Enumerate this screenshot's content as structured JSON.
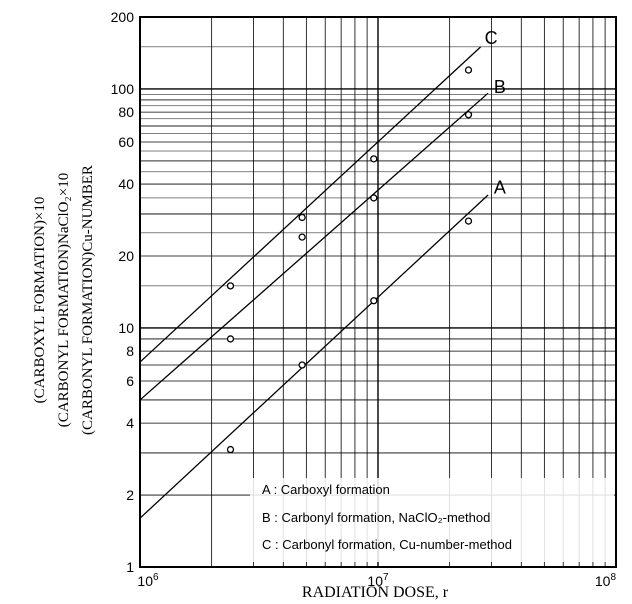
{
  "chart_data": {
    "type": "scatter",
    "xlabel": "RADIATION DOSE, r",
    "ylabel_lines": [
      "(CARBOXYL FORMATION)×10",
      "(CARBONYL FORMATION)NaClO₂×10",
      "(CARBONYL FORMATION)Cu-NUMBER"
    ],
    "x_scale": "log",
    "y_scale": "log",
    "xlim": [
      1000000,
      100000000
    ],
    "ylim": [
      1,
      200
    ],
    "x_ticks": [
      {
        "value": 1000000,
        "base": "10",
        "exp": "6"
      },
      {
        "value": 10000000,
        "base": "10",
        "exp": "7"
      },
      {
        "value": 100000000,
        "base": "10",
        "exp": "8"
      }
    ],
    "y_ticks": [
      {
        "value": 1,
        "label": "1"
      },
      {
        "value": 2,
        "label": "2"
      },
      {
        "value": 4,
        "label": "4"
      },
      {
        "value": 6,
        "label": "6"
      },
      {
        "value": 8,
        "label": "8"
      },
      {
        "value": 10,
        "label": "10"
      },
      {
        "value": 20,
        "label": "20"
      },
      {
        "value": 40,
        "label": "40"
      },
      {
        "value": 60,
        "label": "60"
      },
      {
        "value": 80,
        "label": "80"
      },
      {
        "value": 100,
        "label": "100"
      },
      {
        "value": 200,
        "label": "200"
      }
    ],
    "grid": true,
    "legend_position": "bottom-right",
    "series": [
      {
        "name": "A",
        "legend_text": "A : Carboxyl formation",
        "points": [
          {
            "x": 2400000,
            "y": 3.1
          },
          {
            "x": 4800000,
            "y": 7.0
          },
          {
            "x": 9600000,
            "y": 13.0
          },
          {
            "x": 24000000,
            "y": 28.0
          }
        ],
        "fit_line": [
          {
            "x": 1000000,
            "y": 1.6
          },
          {
            "x": 29000000,
            "y": 36.0
          }
        ],
        "line_label_at": {
          "x": 29500000,
          "y": 38.0
        }
      },
      {
        "name": "B",
        "legend_text": "B : Carbonyl formation, NaClO₂-method",
        "points": [
          {
            "x": 2400000,
            "y": 9.0
          },
          {
            "x": 4800000,
            "y": 24.0
          },
          {
            "x": 9600000,
            "y": 35.0
          },
          {
            "x": 24000000,
            "y": 78.0
          }
        ],
        "fit_line": [
          {
            "x": 1000000,
            "y": 5.0
          },
          {
            "x": 29000000,
            "y": 96.0
          }
        ],
        "line_label_at": {
          "x": 29500000,
          "y": 100.0
        }
      },
      {
        "name": "C",
        "legend_text": "C : Carbonyl formation, Cu-number-method",
        "points": [
          {
            "x": 2400000,
            "y": 15.0
          },
          {
            "x": 4800000,
            "y": 29.0
          },
          {
            "x": 9600000,
            "y": 51.0
          },
          {
            "x": 24000000,
            "y": 120.0
          }
        ],
        "fit_line": [
          {
            "x": 1000000,
            "y": 7.2
          },
          {
            "x": 27000000,
            "y": 150.0
          }
        ],
        "line_label_at": {
          "x": 27000000,
          "y": 160.0
        }
      }
    ]
  }
}
